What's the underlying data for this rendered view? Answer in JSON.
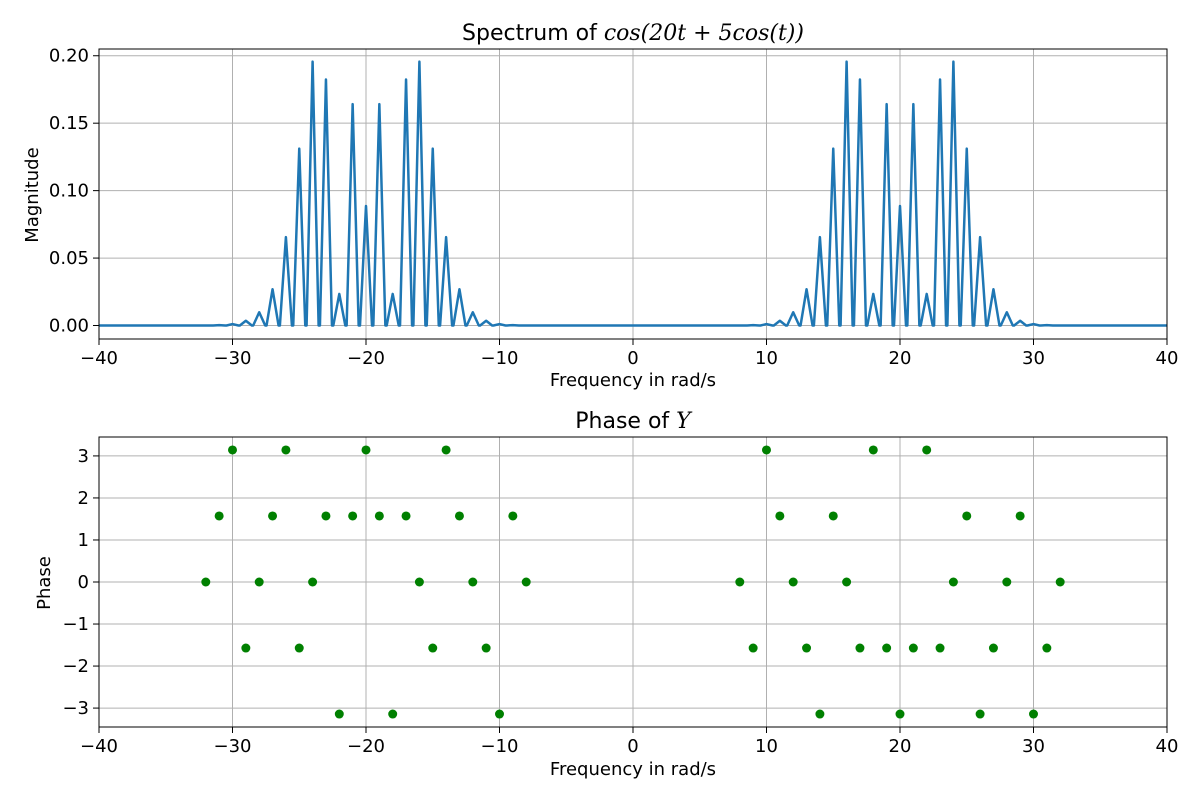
{
  "chart_data": [
    {
      "type": "line",
      "title_prefix": "Spectrum of ",
      "title_math": "cos(20t + 5cos(t))",
      "xlabel": "Frequency in rad/s",
      "ylabel": "Magnitude",
      "xlim": [
        -40,
        40
      ],
      "ylim": [
        -0.01,
        0.205
      ],
      "xticks": [
        -40,
        -30,
        -20,
        -10,
        0,
        10,
        20,
        30,
        40
      ],
      "xtick_labels": [
        "−40",
        "−30",
        "−20",
        "−10",
        "0",
        "10",
        "20",
        "30",
        "40"
      ],
      "yticks": [
        0.0,
        0.05,
        0.1,
        0.15,
        0.2
      ],
      "ytick_labels": [
        "0.00",
        "0.05",
        "0.10",
        "0.15",
        "0.20"
      ],
      "grid": true,
      "line_color": "#1f77b4",
      "peak_halfwidth": 0.45,
      "peaks": {
        "x": [
          -31,
          -30,
          -29,
          -28,
          -27,
          -26,
          -25,
          -24,
          -23,
          -22,
          -21,
          -20,
          -19,
          -18,
          -17,
          -16,
          -15,
          -14,
          -13,
          -12,
          -11,
          -10,
          -9,
          9,
          10,
          11,
          12,
          13,
          14,
          15,
          16,
          17,
          18,
          19,
          20,
          21,
          22,
          23,
          24,
          25,
          26,
          27,
          28,
          29,
          30,
          31
        ],
        "y": [
          0.0003,
          0.0011,
          0.0035,
          0.0098,
          0.0269,
          0.0655,
          0.1311,
          0.1956,
          0.1824,
          0.0234,
          0.1641,
          0.0886,
          0.1641,
          0.0234,
          0.1824,
          0.1956,
          0.1311,
          0.0655,
          0.0269,
          0.0098,
          0.0035,
          0.0011,
          0.0003,
          0.0003,
          0.0011,
          0.0035,
          0.0098,
          0.0269,
          0.0655,
          0.1311,
          0.1956,
          0.1824,
          0.0234,
          0.1641,
          0.0886,
          0.1641,
          0.0234,
          0.1824,
          0.1956,
          0.1311,
          0.0655,
          0.0269,
          0.0098,
          0.0035,
          0.0011,
          0.0003
        ]
      }
    },
    {
      "type": "scatter",
      "title_prefix": "Phase of ",
      "title_math": "Y",
      "xlabel": "Frequency in rad/s",
      "ylabel": "Phase",
      "xlim": [
        -40,
        40
      ],
      "ylim": [
        -3.45,
        3.45
      ],
      "xticks": [
        -40,
        -30,
        -20,
        -10,
        0,
        10,
        20,
        30,
        40
      ],
      "xtick_labels": [
        "−40",
        "−30",
        "−20",
        "−10",
        "0",
        "10",
        "20",
        "30",
        "40"
      ],
      "yticks": [
        -3,
        -2,
        -1,
        0,
        1,
        2,
        3
      ],
      "ytick_labels": [
        "−3",
        "−2",
        "−1",
        "0",
        "1",
        "2",
        "3"
      ],
      "grid": true,
      "marker_color": "#008000",
      "points": {
        "x": [
          -32,
          -31,
          -30,
          -29,
          -28,
          -27,
          -26,
          -25,
          -24,
          -23,
          -22,
          -21,
          -20,
          -19,
          -18,
          -17,
          -16,
          -15,
          -14,
          -13,
          -12,
          -11,
          -10,
          -9,
          -8,
          8,
          9,
          10,
          11,
          12,
          13,
          14,
          15,
          16,
          17,
          18,
          19,
          20,
          21,
          22,
          23,
          24,
          25,
          26,
          27,
          28,
          29,
          30,
          31,
          32
        ],
        "y": [
          0,
          1.571,
          3.1416,
          -1.571,
          0,
          1.571,
          3.1416,
          -1.571,
          0,
          1.571,
          -3.1416,
          1.571,
          3.1416,
          1.571,
          -3.1416,
          1.571,
          0,
          -1.571,
          3.1416,
          1.571,
          0,
          -1.571,
          -3.1416,
          1.571,
          0,
          0,
          -1.571,
          3.1416,
          1.571,
          0,
          -1.571,
          -3.1416,
          1.571,
          0,
          -1.571,
          3.1416,
          -1.571,
          -3.1416,
          -1.571,
          3.1416,
          -1.571,
          0,
          1.571,
          -3.1416,
          -1.571,
          0,
          1.571,
          -3.1416,
          -1.571,
          0
        ]
      }
    }
  ]
}
